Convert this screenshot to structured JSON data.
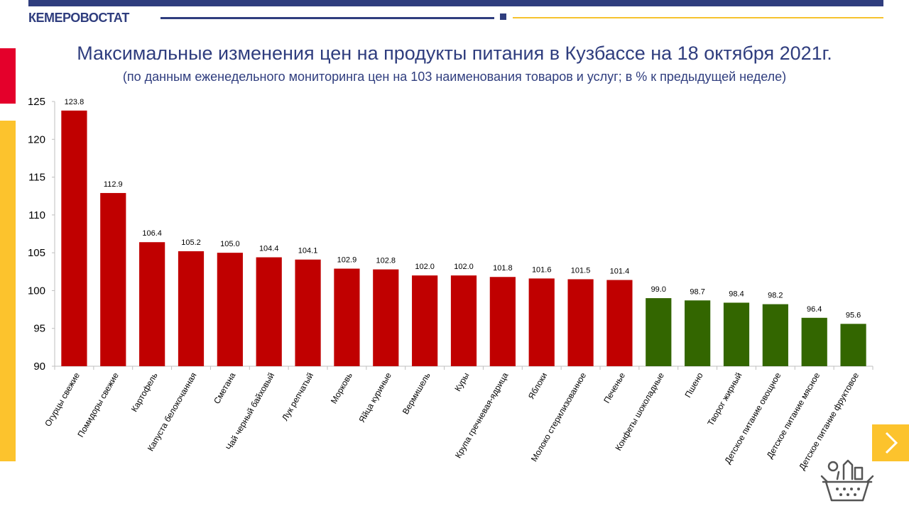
{
  "header": {
    "brand": "КЕМЕРОВОСТАТ",
    "colors": {
      "primary": "#2f3d7e",
      "accent_yellow": "#fcc32d",
      "accent_red": "#e4002b"
    }
  },
  "title": "Максимальные изменения цен на продукты питания в Кузбассе на 18 октября 2021г.",
  "subtitle": "(по данным еженедельного мониторинга цен на 103 наименования товаров и услуг; в % к предыдущей неделе)",
  "chart_data": {
    "type": "bar",
    "categories": [
      "Огурцы свежие",
      "Помидоры свежие",
      "Картофель",
      "Капуста белокочанная",
      "Сметана",
      "Чай черный байховый",
      "Лук репчатый",
      "Морковь",
      "Яйца куриные",
      "Вермишель",
      "Куры",
      "Крупа гречневая-ядрица",
      "Яблоки",
      "Молоко стерилизованное",
      "Печенье",
      "Конфеты шоколадные",
      "Пшено",
      "Творог жирный",
      "Детское питание овощное",
      "Детское питание мясное",
      "Детское питание фруктовое"
    ],
    "values": [
      123.8,
      112.9,
      106.4,
      105.2,
      105.0,
      104.4,
      104.1,
      102.9,
      102.8,
      102.0,
      102.0,
      101.8,
      101.6,
      101.5,
      101.4,
      99.0,
      98.7,
      98.4,
      98.2,
      96.4,
      95.6
    ],
    "value_labels": [
      "123.8",
      "112.9",
      "106.4",
      "105.2",
      "105.0",
      "104.4",
      "104.1",
      "102.9",
      "102.8",
      "102.0",
      "102.0",
      "101.8",
      "101.6",
      "101.5",
      "101.4",
      "99.0",
      "98.7",
      "98.4",
      "98.2",
      "96.4",
      "95.6"
    ],
    "ylim": [
      90,
      125
    ],
    "yticks": [
      "90",
      "95",
      "100",
      "105",
      "110",
      "115",
      "120",
      "125"
    ],
    "grid": false,
    "colors": {
      "increase": "#c00000",
      "decrease": "#336600"
    },
    "xlabel": "",
    "ylabel": ""
  },
  "nav": {
    "next_icon": "chevron-right-icon"
  },
  "decor": {
    "icon": "basket-icon"
  }
}
